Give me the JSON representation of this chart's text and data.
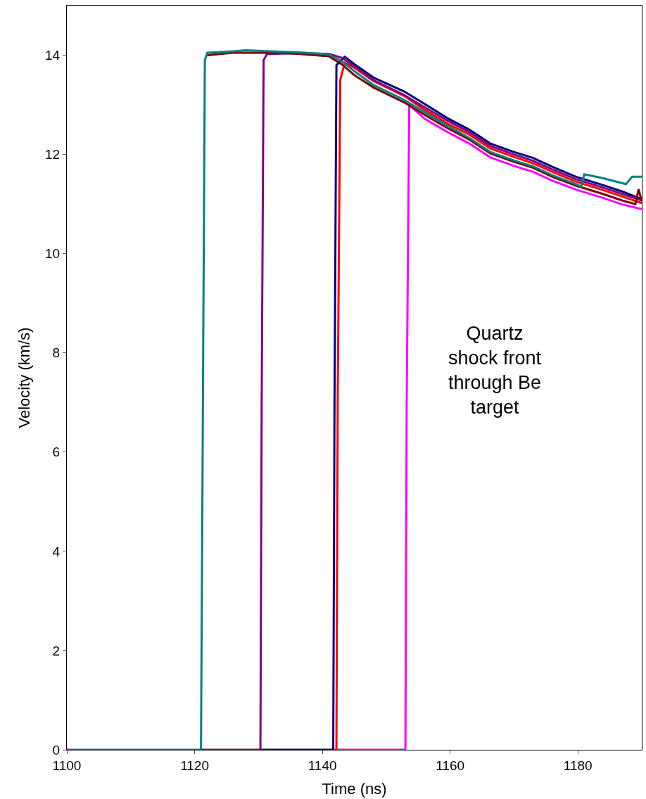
{
  "chart_data": {
    "type": "line",
    "xlabel": "Time (ns)",
    "ylabel": "Velocity (km/s)",
    "xlim": [
      1100,
      1190
    ],
    "xticks": [
      1100,
      1120,
      1140,
      1160,
      1180
    ],
    "ylim": [
      0,
      15
    ],
    "yticks": [
      0,
      2,
      4,
      6,
      8,
      10,
      12,
      14
    ],
    "line_style": "solid",
    "annotations": [
      "Quartz\nshock front\nthrough Be\ntarget"
    ],
    "series": [
      {
        "color": "#ff00ff",
        "x": [
          1141.7,
          1153,
          1153.2,
          1153.6,
          1156,
          1159.6,
          1163,
          1166.3,
          1170,
          1173,
          1176,
          1179.7,
          1184,
          1187,
          1190
        ],
        "values": [
          0,
          0,
          7,
          13.0,
          12.72,
          12.45,
          12.22,
          11.94,
          11.77,
          11.65,
          11.47,
          11.29,
          11.12,
          10.99,
          10.9
        ]
      },
      {
        "color": "#ff0000",
        "x": [
          1142.1,
          1142.2,
          1142.4,
          1142.8,
          1143.5,
          1145,
          1148,
          1152.8,
          1156,
          1159.6,
          1163,
          1166.3,
          1170,
          1173,
          1176,
          1179.7,
          1184,
          1187,
          1190
        ],
        "values": [
          0,
          0,
          7,
          13.5,
          13.85,
          13.75,
          13.48,
          13.18,
          12.9,
          12.62,
          12.4,
          12.12,
          11.95,
          11.82,
          11.65,
          11.45,
          11.28,
          11.15,
          11.02
        ]
      },
      {
        "color": "#000080",
        "x": [
          1130.3,
          1141.7,
          1141.9,
          1142.2,
          1142.8,
          1143.5,
          1145,
          1148,
          1152.8,
          1156,
          1159.6,
          1163,
          1166.3,
          1170,
          1173,
          1176,
          1179.7,
          1184,
          1187,
          1190
        ],
        "values": [
          0,
          0,
          7,
          13.8,
          13.88,
          13.97,
          13.82,
          13.55,
          13.27,
          13.02,
          12.73,
          12.5,
          12.22,
          12.05,
          11.93,
          11.75,
          11.55,
          11.38,
          11.25,
          11.1
        ]
      },
      {
        "color": "#800080",
        "x": [
          1121,
          1130.3,
          1130.5,
          1130.8,
          1131.3,
          1135,
          1141,
          1143,
          1145,
          1148,
          1152.8,
          1156,
          1159.6,
          1163,
          1166.3,
          1170,
          1173,
          1176,
          1179.7,
          1184,
          1187,
          1190
        ],
        "values": [
          0,
          0,
          7,
          13.9,
          14.02,
          14.04,
          14.03,
          13.95,
          13.78,
          13.5,
          13.2,
          12.95,
          12.68,
          12.45,
          12.17,
          12.0,
          11.87,
          11.7,
          11.5,
          11.33,
          11.2,
          11.07
        ]
      },
      {
        "color": "#800000",
        "x": [
          1122,
          1126,
          1130,
          1135,
          1141,
          1143,
          1145,
          1148,
          1152.8,
          1156,
          1159.6,
          1163,
          1166.3,
          1170,
          1173,
          1176,
          1179.7,
          1184,
          1187,
          1189,
          1189.5,
          1190
        ],
        "values": [
          14.0,
          14.05,
          14.05,
          14.04,
          13.98,
          13.82,
          13.6,
          13.35,
          13.05,
          12.8,
          12.53,
          12.3,
          12.02,
          11.85,
          11.73,
          11.55,
          11.37,
          11.2,
          11.07,
          11.0,
          11.3,
          11.05
        ]
      },
      {
        "color": "#008080",
        "x": [
          1100,
          1121,
          1121.3,
          1121.6,
          1122,
          1126,
          1128,
          1132,
          1136,
          1141,
          1143,
          1145,
          1148,
          1152.8,
          1156,
          1159.6,
          1163,
          1166.3,
          1170,
          1173,
          1176,
          1179.7,
          1180.5,
          1181,
          1184,
          1187,
          1187.5,
          1188.5,
          1190
        ],
        "values": [
          0,
          0,
          7,
          13.9,
          14.05,
          14.08,
          14.1,
          14.08,
          14.06,
          14.02,
          13.88,
          13.68,
          13.4,
          13.1,
          12.85,
          12.58,
          12.33,
          12.05,
          11.88,
          11.76,
          11.58,
          11.4,
          11.35,
          11.6,
          11.52,
          11.42,
          11.4,
          11.55,
          11.55
        ]
      }
    ]
  }
}
